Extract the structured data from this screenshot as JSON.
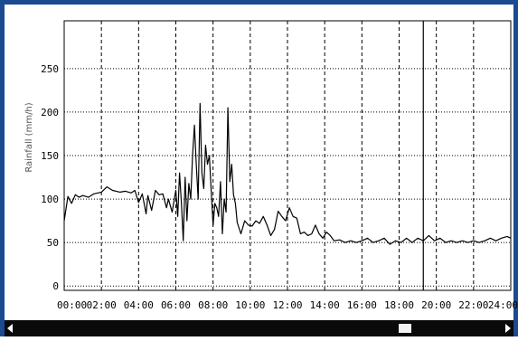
{
  "chart_data": {
    "type": "line",
    "xlabel": "",
    "ylabel": "Rainfall (mm/h)",
    "x_ticks": [
      "00:00",
      "02:00",
      "04:00",
      "06:00",
      "08:00",
      "10:00",
      "12:00",
      "14:00",
      "16:00",
      "18:00",
      "20:00",
      "22:00",
      "24:00"
    ],
    "y_ticks": [
      "0",
      "50",
      "100",
      "150",
      "200",
      "250"
    ],
    "xlim": [
      0,
      24
    ],
    "ylim": [
      -5,
      305
    ],
    "grid": true,
    "cursor_x": 19.3,
    "series": [
      {
        "color": "#000000",
        "x": [
          0.0,
          0.2,
          0.4,
          0.6,
          0.8,
          1.0,
          1.3,
          1.6,
          2.0,
          2.3,
          2.6,
          3.0,
          3.3,
          3.6,
          3.8,
          4.0,
          4.2,
          4.4,
          4.5,
          4.7,
          4.9,
          5.1,
          5.3,
          5.5,
          5.6,
          5.8,
          6.0,
          6.1,
          6.2,
          6.3,
          6.4,
          6.5,
          6.6,
          6.7,
          6.8,
          6.9,
          7.0,
          7.1,
          7.2,
          7.3,
          7.4,
          7.5,
          7.6,
          7.7,
          7.8,
          7.9,
          8.0,
          8.1,
          8.2,
          8.3,
          8.4,
          8.5,
          8.6,
          8.7,
          8.8,
          8.9,
          9.0,
          9.1,
          9.2,
          9.3,
          9.5,
          9.7,
          9.9,
          10.1,
          10.3,
          10.5,
          10.7,
          10.9,
          11.1,
          11.3,
          11.5,
          11.7,
          11.9,
          12.1,
          12.3,
          12.5,
          12.7,
          12.9,
          13.1,
          13.3,
          13.5,
          13.7,
          13.9,
          14.1,
          14.3,
          14.5,
          14.8,
          15.1,
          15.4,
          15.7,
          16.0,
          16.3,
          16.6,
          16.9,
          17.2,
          17.5,
          17.8,
          18.1,
          18.4,
          18.7,
          19.0,
          19.3,
          19.6,
          19.9,
          20.2,
          20.5,
          20.8,
          21.1,
          21.4,
          21.7,
          22.0,
          22.3,
          22.6,
          22.9,
          23.2,
          23.5,
          23.8,
          24.0
        ],
        "values": [
          75,
          103,
          95,
          105,
          102,
          104,
          102,
          106,
          108,
          114,
          110,
          108,
          109,
          107,
          110,
          96,
          106,
          83,
          104,
          87,
          110,
          105,
          106,
          90,
          100,
          85,
          110,
          80,
          130,
          95,
          52,
          125,
          75,
          118,
          100,
          150,
          185,
          140,
          100,
          210,
          130,
          112,
          162,
          140,
          150,
          110,
          70,
          95,
          90,
          80,
          120,
          60,
          100,
          85,
          205,
          120,
          140,
          105,
          95,
          73,
          60,
          75,
          70,
          69,
          75,
          72,
          80,
          70,
          58,
          65,
          86,
          80,
          75,
          90,
          80,
          78,
          60,
          62,
          58,
          60,
          70,
          60,
          55,
          62,
          58,
          52,
          53,
          50,
          52,
          50,
          52,
          55,
          50,
          52,
          55,
          48,
          52,
          50,
          55,
          50,
          55,
          52,
          58,
          52,
          55,
          50,
          52,
          50,
          52,
          50,
          52,
          50,
          52,
          55,
          52,
          55,
          57,
          55
        ]
      }
    ]
  },
  "icons": {
    "scroll_left": "scroll-left-arrow",
    "scroll_right": "scroll-right-arrow"
  }
}
